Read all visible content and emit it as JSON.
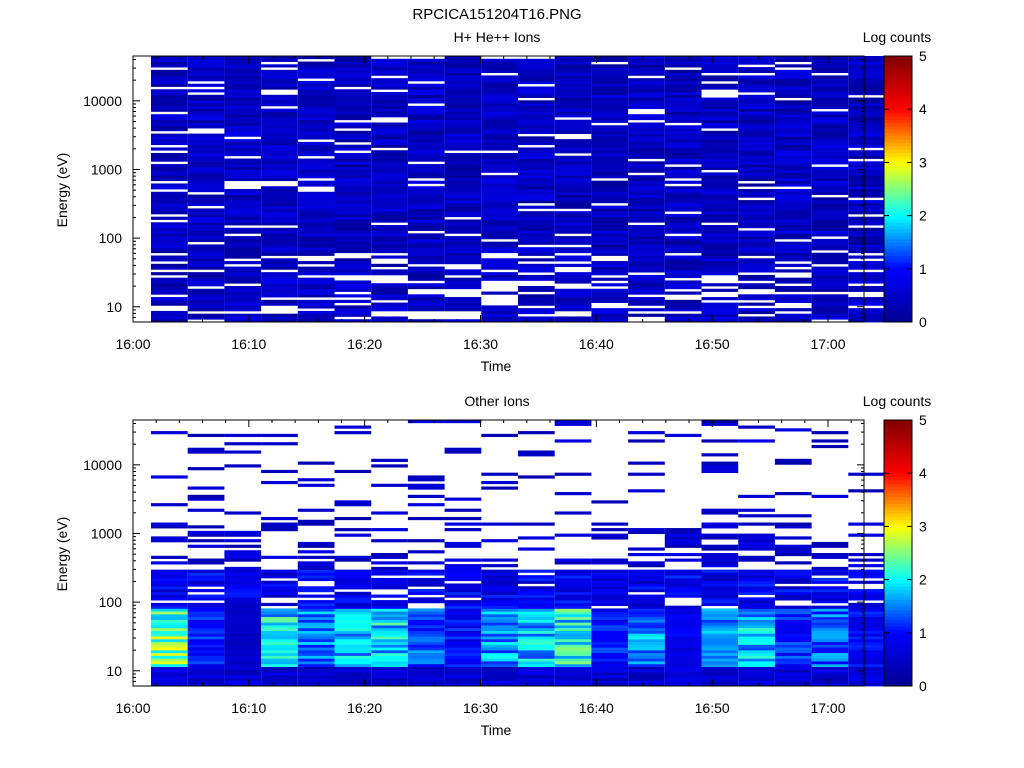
{
  "figure_title": "RPCICA151204T16.PNG",
  "colormap": [
    "#00008f",
    "#0000ff",
    "#00ffff",
    "#ffff00",
    "#ff0000",
    "#800000"
  ],
  "chart_data": [
    {
      "type": "heatmap",
      "title": "H+ He++ Ions",
      "xlabel": "Time",
      "ylabel": "Energy (eV)",
      "y_scale": "log",
      "ylim": [
        6,
        45000
      ],
      "x_ticks": [
        "16:00",
        "16:10",
        "16:20",
        "16:30",
        "16:40",
        "16:50",
        "17:00"
      ],
      "y_ticks": [
        "10",
        "100",
        "1000",
        "10000"
      ],
      "time_bins": [
        "16:02",
        "16:05",
        "16:08",
        "16:11",
        "16:14",
        "16:17",
        "16:20",
        "16:23",
        "16:26",
        "16:29",
        "16:32",
        "16:35",
        "16:38",
        "16:41",
        "16:44",
        "16:47",
        "16:50",
        "16:53",
        "16:56",
        "16:59",
        "17:02"
      ],
      "colorbar": {
        "label": "Log counts",
        "ticks": [
          "0",
          "1",
          "2",
          "3",
          "4",
          "5"
        ],
        "range": [
          0,
          5
        ]
      },
      "value_level": 0.7,
      "value_range": [
        0,
        1.3
      ]
    },
    {
      "type": "heatmap",
      "title": "Other Ions",
      "xlabel": "Time",
      "ylabel": "Energy (eV)",
      "y_scale": "log",
      "ylim": [
        6,
        45000
      ],
      "x_ticks": [
        "16:00",
        "16:10",
        "16:20",
        "16:30",
        "16:40",
        "16:50",
        "17:00"
      ],
      "y_ticks": [
        "10",
        "100",
        "1000",
        "10000"
      ],
      "time_bins": [
        "16:02",
        "16:05",
        "16:08",
        "16:11",
        "16:14",
        "16:17",
        "16:20",
        "16:23",
        "16:26",
        "16:29",
        "16:32",
        "16:35",
        "16:38",
        "16:41",
        "16:44",
        "16:47",
        "16:50",
        "16:53",
        "16:56",
        "16:59",
        "17:02"
      ],
      "colorbar": {
        "label": "Log counts",
        "ticks": [
          "0",
          "1",
          "2",
          "3",
          "4",
          "5"
        ],
        "range": [
          0,
          5
        ]
      },
      "low_energy_peak": [
        3.0,
        1.3,
        0.6,
        2.4,
        1.8,
        2.2,
        2.3,
        1.6,
        1.2,
        2.0,
        2.2,
        2.5,
        1.3,
        1.9,
        1.0,
        1.8,
        2.2,
        1.4,
        1.7,
        1.2
      ],
      "value_range": [
        0,
        3.1
      ]
    }
  ]
}
